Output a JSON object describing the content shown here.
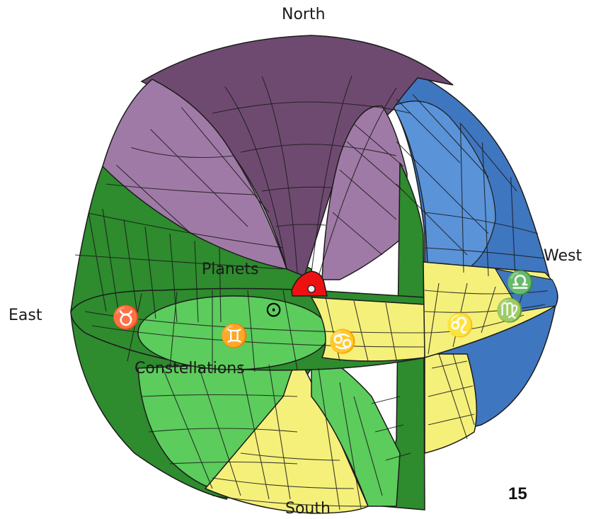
{
  "labels": {
    "north": "North",
    "south": "South",
    "east": "East",
    "west": "West",
    "planets": "Planets",
    "constellations": "Constellations"
  },
  "page_number": "15",
  "zodiac": {
    "taurus": "♉",
    "gemini": "♊",
    "cancer": "♋",
    "leo": "♌",
    "virgo": "♍",
    "libra": "♎",
    "sun": "⊙"
  },
  "colors": {
    "sphere_green": "#2e8b2e",
    "light_green": "#5ccc5c",
    "purple": "#a07aa6",
    "dark_purple": "#6e4a70",
    "blue": "#3f76c0",
    "light_blue": "#5a93d8",
    "yellow": "#f5f07a",
    "earth_red": "#ee1111"
  }
}
